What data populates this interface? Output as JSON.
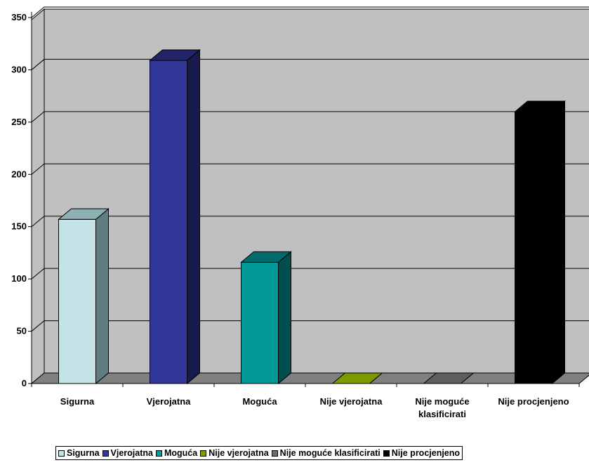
{
  "chart_data": {
    "type": "bar",
    "title": "",
    "xlabel": "",
    "ylabel": "",
    "ylim": [
      0,
      350
    ],
    "yticks": [
      "0",
      "50",
      "100",
      "150",
      "200",
      "250",
      "300",
      "350"
    ],
    "grid": true,
    "legend_position": "bottom",
    "categories": [
      {
        "label": "Sigurna",
        "lines": [
          "Sigurna"
        ],
        "value": 157,
        "front": "#c3e3e6",
        "top": "#8fb0b3",
        "side": "#5f7d80"
      },
      {
        "label": "Vjerojatna",
        "lines": [
          "Vjerojatna"
        ],
        "value": 309,
        "front": "#33379a",
        "top": "#222468",
        "side": "#191a4e"
      },
      {
        "label": "Moguća",
        "lines": [
          "Moguća"
        ],
        "value": 116,
        "front": "#009997",
        "top": "#006b6a",
        "side": "#004f4e"
      },
      {
        "label": "Nije vjerojatna",
        "lines": [
          "Nije vjerojatna"
        ],
        "value": 0,
        "front": "#7a9a00",
        "top": "#7a9a00",
        "side": "#5a7200"
      },
      {
        "label": "Nije moguće klasificirati",
        "lines": [
          "Nije moguće",
          "klasificirati"
        ],
        "value": 0,
        "front": "#6b6b6b",
        "top": "#5e5e5e",
        "side": "#3c3c3c"
      },
      {
        "label": "Nije procjenjeno",
        "lines": [
          "Nije procjenjeno"
        ],
        "value": 260,
        "front": "#000000",
        "top": "#000000",
        "side": "#000000"
      }
    ],
    "colors": {
      "plot_background": "#c0c0c0",
      "floor": "#808080",
      "gridline": "#000000"
    }
  }
}
